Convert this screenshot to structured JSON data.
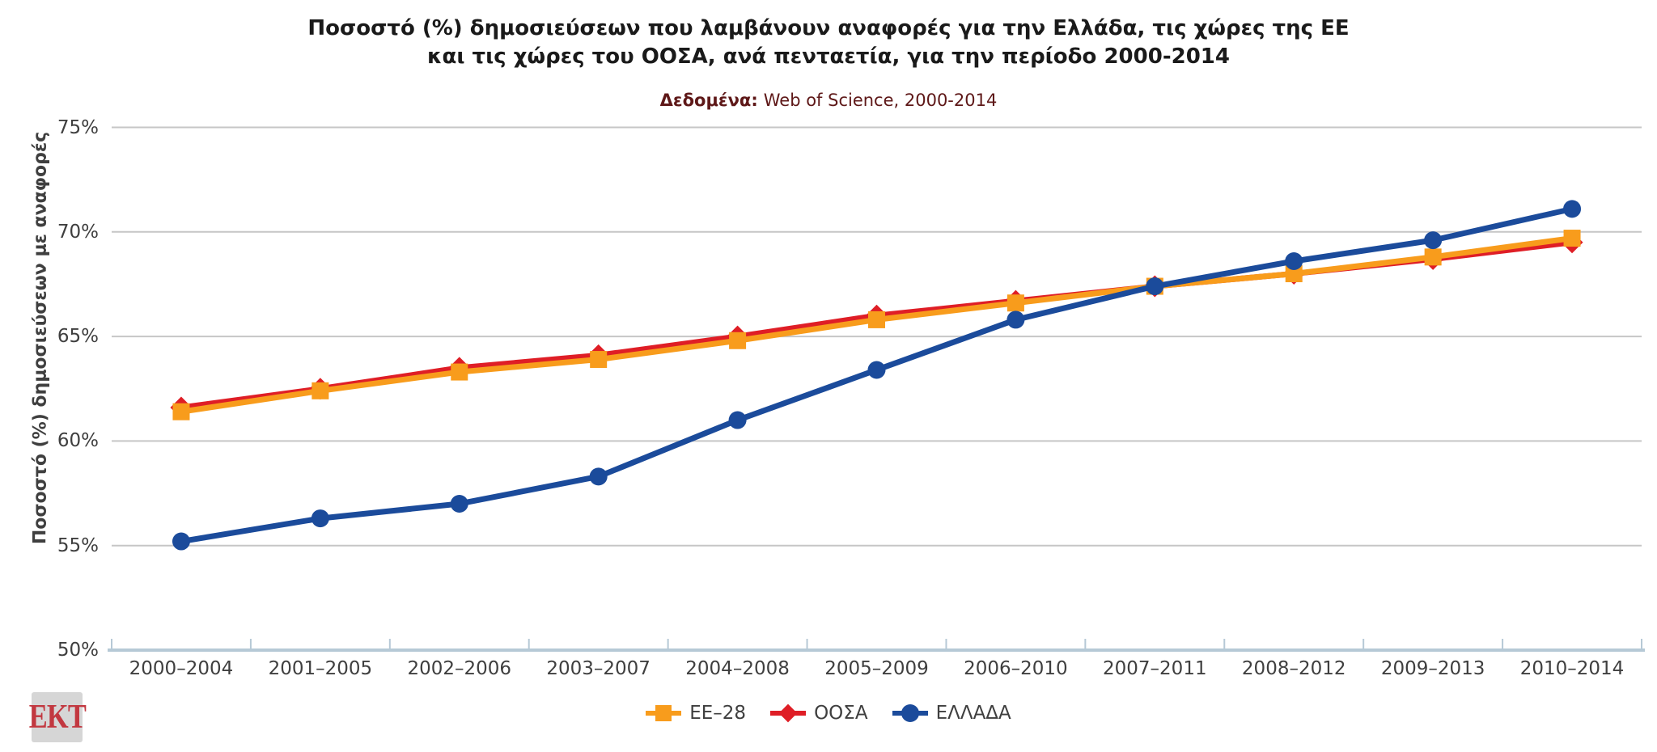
{
  "title": {
    "line1": "Ποσοστό (%) δημοσιεύσεων που λαμβάνουν αναφορές για την Ελλάδα, τις χώρες της ΕΕ",
    "line2": "και τις χώρες του ΟΟΣΑ, ανά πενταετία, για την περίοδο 2000-2014"
  },
  "subtitle": {
    "label": "Δεδομένα:",
    "text": "Web of Science, 2000-2014"
  },
  "logo": {
    "text": "ΕΚΤ"
  },
  "chart_data": {
    "type": "line",
    "title": "Ποσοστό (%) δημοσιεύσεων που λαμβάνουν αναφορές για την Ελλάδα, τις χώρες της ΕΕ και τις χώρες του ΟΟΣΑ, ανά πενταετία, για την περίοδο 2000-2014",
    "subtitle": "Δεδομένα: Web of Science, 2000-2014",
    "xlabel": "",
    "ylabel": "Ποσοστό (%) δημοσιεύσεων με αναφορές",
    "ylim": [
      50,
      75
    ],
    "ytick_step": 5,
    "ytick_suffix": "%",
    "grid": true,
    "legend_position": "bottom",
    "categories": [
      "2000–2004",
      "2001–2005",
      "2002–2006",
      "2003–2007",
      "2004–2008",
      "2005–2009",
      "2006–2010",
      "2007–2011",
      "2008–2012",
      "2009–2013",
      "2010–2014"
    ],
    "series": [
      {
        "name": "EE–28",
        "marker": "square",
        "color": "#F89C1C",
        "values": [
          61.4,
          62.4,
          63.3,
          63.9,
          64.8,
          65.8,
          66.6,
          67.4,
          68.0,
          68.8,
          69.7
        ]
      },
      {
        "name": "ΟΟΣΑ",
        "marker": "diamond",
        "color": "#DF1E26",
        "values": [
          61.6,
          62.5,
          63.5,
          64.1,
          65.0,
          66.0,
          66.7,
          67.4,
          68.0,
          68.7,
          69.5
        ]
      },
      {
        "name": "ΕΛΛΑΔΑ",
        "marker": "circle",
        "color": "#1B4B9B",
        "values": [
          55.2,
          56.3,
          57.0,
          58.3,
          61.0,
          63.4,
          65.8,
          67.4,
          68.6,
          69.6,
          71.1
        ]
      }
    ],
    "draw_order": [
      1,
      0,
      2
    ],
    "colors": {
      "gridline": "#C6C6C6",
      "axis_line": "#B6C9D6",
      "text": "#3F3F3F"
    }
  }
}
